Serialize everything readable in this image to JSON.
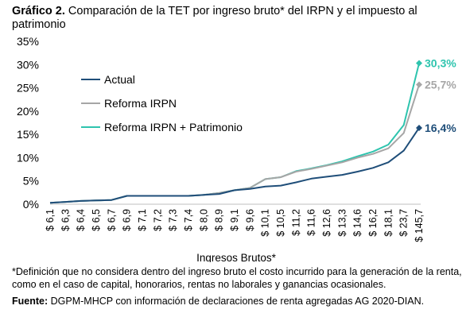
{
  "title_prefix": "Gráfico 2.",
  "title_text": "Comparación de la TET por ingreso bruto* del IRPN y el impuesto al patrimonio",
  "footnote": "*Definición que no considera dentro del ingreso bruto el costo incurrido para la generación de la renta, como en el caso de capital, honorarios, rentas no laborales y ganancias ocasionales.",
  "source_label": "Fuente:",
  "source_text": "DGPM-MHCP con información de declaraciones de renta agregadas AG 2020-DIAN.",
  "colors": {
    "actual": "#1f4e79",
    "reforma": "#a6a6a6",
    "patrimonio": "#2ec4ae"
  },
  "chart_data": {
    "type": "line",
    "xlabel": "Ingresos Brutos*",
    "ylabel": "",
    "ylim": [
      0,
      35
    ],
    "yticks": [
      "0%",
      "5%",
      "10%",
      "15%",
      "20%",
      "25%",
      "30%",
      "35%"
    ],
    "grid": false,
    "legend_position": "top-left",
    "categories": [
      "$ 6,1",
      "$ 6,3",
      "$ 6,4",
      "$ 6,5",
      "$ 6,7",
      "$ 6,9",
      "$ 7,1",
      "$ 7,2",
      "$ 7,3",
      "$ 7,4",
      "$ 8,0",
      "$ 8,9",
      "$ 9,1",
      "$ 9,6",
      "$ 10,1",
      "$ 10,5",
      "$ 11,2",
      "$ 11,6",
      "$ 12,6",
      "$ 13,3",
      "$ 14,6",
      "$ 16,2",
      "$ 18,1",
      "$ 23,7",
      "$ 145,7"
    ],
    "series": [
      {
        "name": "Actual",
        "color": "#1f4e79",
        "values": [
          0.3,
          0.5,
          0.7,
          0.8,
          0.9,
          1.8,
          1.8,
          1.8,
          1.8,
          1.8,
          2.0,
          2.2,
          3.0,
          3.3,
          3.8,
          4.0,
          4.7,
          5.5,
          5.9,
          6.3,
          7.0,
          7.8,
          9.0,
          11.5,
          16.4
        ],
        "end_label": "16,4%"
      },
      {
        "name": "Reforma IRPN",
        "color": "#a6a6a6",
        "values": [
          0.3,
          0.5,
          0.7,
          0.8,
          0.9,
          1.8,
          1.8,
          1.8,
          1.8,
          1.8,
          2.0,
          2.4,
          3.0,
          3.5,
          5.4,
          5.8,
          7.0,
          7.6,
          8.3,
          9.0,
          10.0,
          10.8,
          12.0,
          15.3,
          25.7
        ],
        "end_label": "25,7%"
      },
      {
        "name": "Reforma IRPN + Patrimonio",
        "color": "#2ec4ae",
        "values": [
          0.3,
          0.5,
          0.7,
          0.8,
          0.9,
          1.8,
          1.8,
          1.8,
          1.8,
          1.8,
          2.0,
          2.4,
          3.0,
          3.5,
          5.4,
          5.8,
          7.1,
          7.7,
          8.4,
          9.2,
          10.3,
          11.3,
          12.8,
          17.0,
          30.3
        ],
        "end_label": "30,3%"
      }
    ]
  }
}
